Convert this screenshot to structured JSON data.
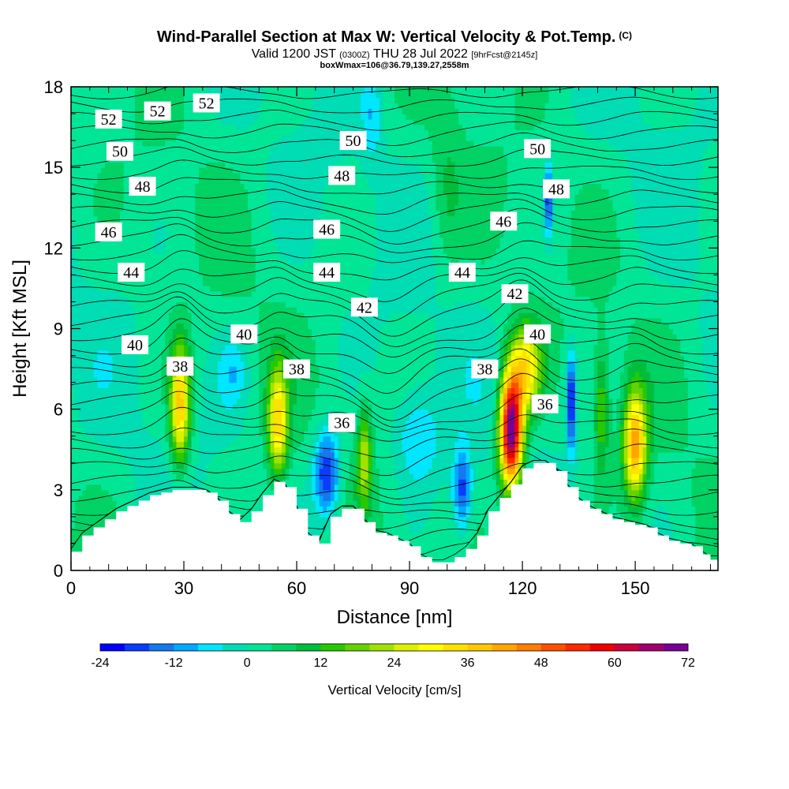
{
  "header": {
    "title": "Wind-Parallel Section at Max W: Vertical Velocity & Pot.Temp.",
    "title_mark": "(C)",
    "valid_prefix": "Valid 1200 JST",
    "valid_utc": "(0300Z)",
    "valid_date": "THU 28 Jul 2022",
    "forecast": "[9hrFcst@2145z]",
    "box_info": "boxWmax=106@36.79,139.27,2558m"
  },
  "chart_data": {
    "type": "heatmap",
    "xlabel": "Distance [nm]",
    "ylabel": "Height [Kft MSL]",
    "xlim": [
      0,
      172
    ],
    "ylim": [
      0,
      18
    ],
    "x_ticks": [
      0,
      30,
      60,
      90,
      120,
      150
    ],
    "y_ticks": [
      0,
      3,
      6,
      9,
      12,
      15,
      18
    ],
    "terrain": {
      "x": [
        0,
        3,
        6,
        9,
        12,
        15,
        18,
        21,
        24,
        27,
        30,
        33,
        36,
        39,
        42,
        45,
        48,
        51,
        54,
        57,
        60,
        63,
        66,
        69,
        72,
        75,
        78,
        81,
        84,
        87,
        90,
        93,
        96,
        99,
        102,
        105,
        108,
        111,
        114,
        117,
        120,
        123,
        126,
        129,
        132,
        135,
        138,
        141,
        144,
        147,
        150,
        153,
        156,
        159,
        162,
        165,
        168,
        170,
        172
      ],
      "height": [
        0.7,
        1.3,
        1.6,
        1.9,
        2.2,
        2.4,
        2.6,
        2.8,
        2.9,
        3.0,
        3.0,
        3.0,
        2.9,
        2.6,
        2.1,
        1.8,
        2.2,
        2.8,
        3.3,
        3.1,
        2.3,
        1.3,
        1.0,
        2.0,
        2.3,
        2.3,
        1.8,
        1.4,
        1.3,
        1.1,
        0.9,
        0.5,
        0.3,
        0.3,
        0.5,
        0.8,
        1.3,
        2.2,
        2.7,
        3.2,
        3.8,
        4.0,
        4.0,
        3.7,
        3.1,
        2.6,
        2.3,
        2.1,
        1.9,
        1.8,
        1.7,
        1.6,
        1.3,
        1.1,
        1.0,
        0.9,
        0.6,
        0.4,
        0.3
      ]
    },
    "vertical_velocity_cells": [
      {
        "x": 29,
        "z": 6.2,
        "peak": 36,
        "sx": 2.6,
        "sz": 2.2
      },
      {
        "x": 55,
        "z": 5.5,
        "peak": 32,
        "sx": 2.6,
        "sz": 2.0
      },
      {
        "x": 78,
        "z": 4.2,
        "peak": 20,
        "sx": 1.8,
        "sz": 1.8
      },
      {
        "x": 117,
        "z": 5.2,
        "peak": 72,
        "sx": 3.0,
        "sz": 2.1
      },
      {
        "x": 121,
        "z": 7.5,
        "peak": 30,
        "sx": 4.0,
        "sz": 1.6
      },
      {
        "x": 150,
        "z": 4.7,
        "peak": 40,
        "sx": 3.0,
        "sz": 2.0
      },
      {
        "x": 141,
        "z": 6.0,
        "peak": 14,
        "sx": 2.0,
        "sz": 2.4
      },
      {
        "x": 68,
        "z": 3.6,
        "peak": -24,
        "sx": 3.5,
        "sz": 1.6
      },
      {
        "x": 104,
        "z": 3.0,
        "peak": -20,
        "sx": 2.4,
        "sz": 1.5
      },
      {
        "x": 133,
        "z": 6.3,
        "peak": -24,
        "sx": 1.2,
        "sz": 1.9
      },
      {
        "x": 127,
        "z": 13.8,
        "peak": -22,
        "sx": 1.0,
        "sz": 1.3
      },
      {
        "x": 43,
        "z": 7.4,
        "peak": -8,
        "sx": 4.0,
        "sz": 1.4
      },
      {
        "x": 92,
        "z": 5.0,
        "peak": -10,
        "sx": 6.0,
        "sz": 1.8
      },
      {
        "x": 80,
        "z": 17.0,
        "peak": -8,
        "sx": 2.5,
        "sz": 1.8
      },
      {
        "x": 100,
        "z": 14.0,
        "peak": 6,
        "sx": 4.0,
        "sz": 3.0
      }
    ],
    "potential_temperature_labels": [
      {
        "value": "52",
        "x": 10,
        "z": 16.8
      },
      {
        "value": "52",
        "x": 23,
        "z": 17.1
      },
      {
        "value": "52",
        "x": 36,
        "z": 17.4
      },
      {
        "value": "50",
        "x": 13,
        "z": 15.6
      },
      {
        "value": "50",
        "x": 75,
        "z": 16.0
      },
      {
        "value": "50",
        "x": 124,
        "z": 15.7
      },
      {
        "value": "48",
        "x": 19,
        "z": 14.3
      },
      {
        "value": "48",
        "x": 72,
        "z": 14.7
      },
      {
        "value": "48",
        "x": 129,
        "z": 14.2
      },
      {
        "value": "46",
        "x": 10,
        "z": 12.6
      },
      {
        "value": "46",
        "x": 68,
        "z": 12.7
      },
      {
        "value": "46",
        "x": 115,
        "z": 13.0
      },
      {
        "value": "44",
        "x": 16,
        "z": 11.1
      },
      {
        "value": "44",
        "x": 68,
        "z": 11.1
      },
      {
        "value": "44",
        "x": 104,
        "z": 11.1
      },
      {
        "value": "42",
        "x": 78,
        "z": 9.8
      },
      {
        "value": "42",
        "x": 118,
        "z": 10.3
      },
      {
        "value": "40",
        "x": 17,
        "z": 8.4
      },
      {
        "value": "40",
        "x": 46,
        "z": 8.8
      },
      {
        "value": "40",
        "x": 124,
        "z": 8.8
      },
      {
        "value": "38",
        "x": 29,
        "z": 7.6
      },
      {
        "value": "38",
        "x": 60,
        "z": 7.5
      },
      {
        "value": "38",
        "x": 110,
        "z": 7.5
      },
      {
        "value": "36",
        "x": 72,
        "z": 5.5
      },
      {
        "value": "36",
        "x": 126,
        "z": 6.2
      }
    ],
    "colorbar": {
      "title": "Vertical Velocity [cm/s]",
      "ticks": [
        "-24",
        "-12",
        "0",
        "12",
        "24",
        "36",
        "48",
        "60",
        "72"
      ],
      "bins": [
        -24,
        -20,
        -16,
        -12,
        -8,
        -4,
        0,
        4,
        8,
        12,
        16,
        20,
        24,
        28,
        32,
        36,
        40,
        44,
        48,
        52,
        56,
        60,
        64,
        68,
        72
      ],
      "colors": [
        "#0000ff",
        "#0a3cfa",
        "#1478f0",
        "#00a8ff",
        "#00e6ff",
        "#00dcb4",
        "#00e696",
        "#00d264",
        "#00be3c",
        "#28c800",
        "#64d200",
        "#a0e100",
        "#dcf000",
        "#ffff00",
        "#ffe100",
        "#ffc800",
        "#ffa500",
        "#ff7d00",
        "#ff5000",
        "#ff2800",
        "#f00000",
        "#c8003c",
        "#a0006e",
        "#780096"
      ]
    }
  }
}
